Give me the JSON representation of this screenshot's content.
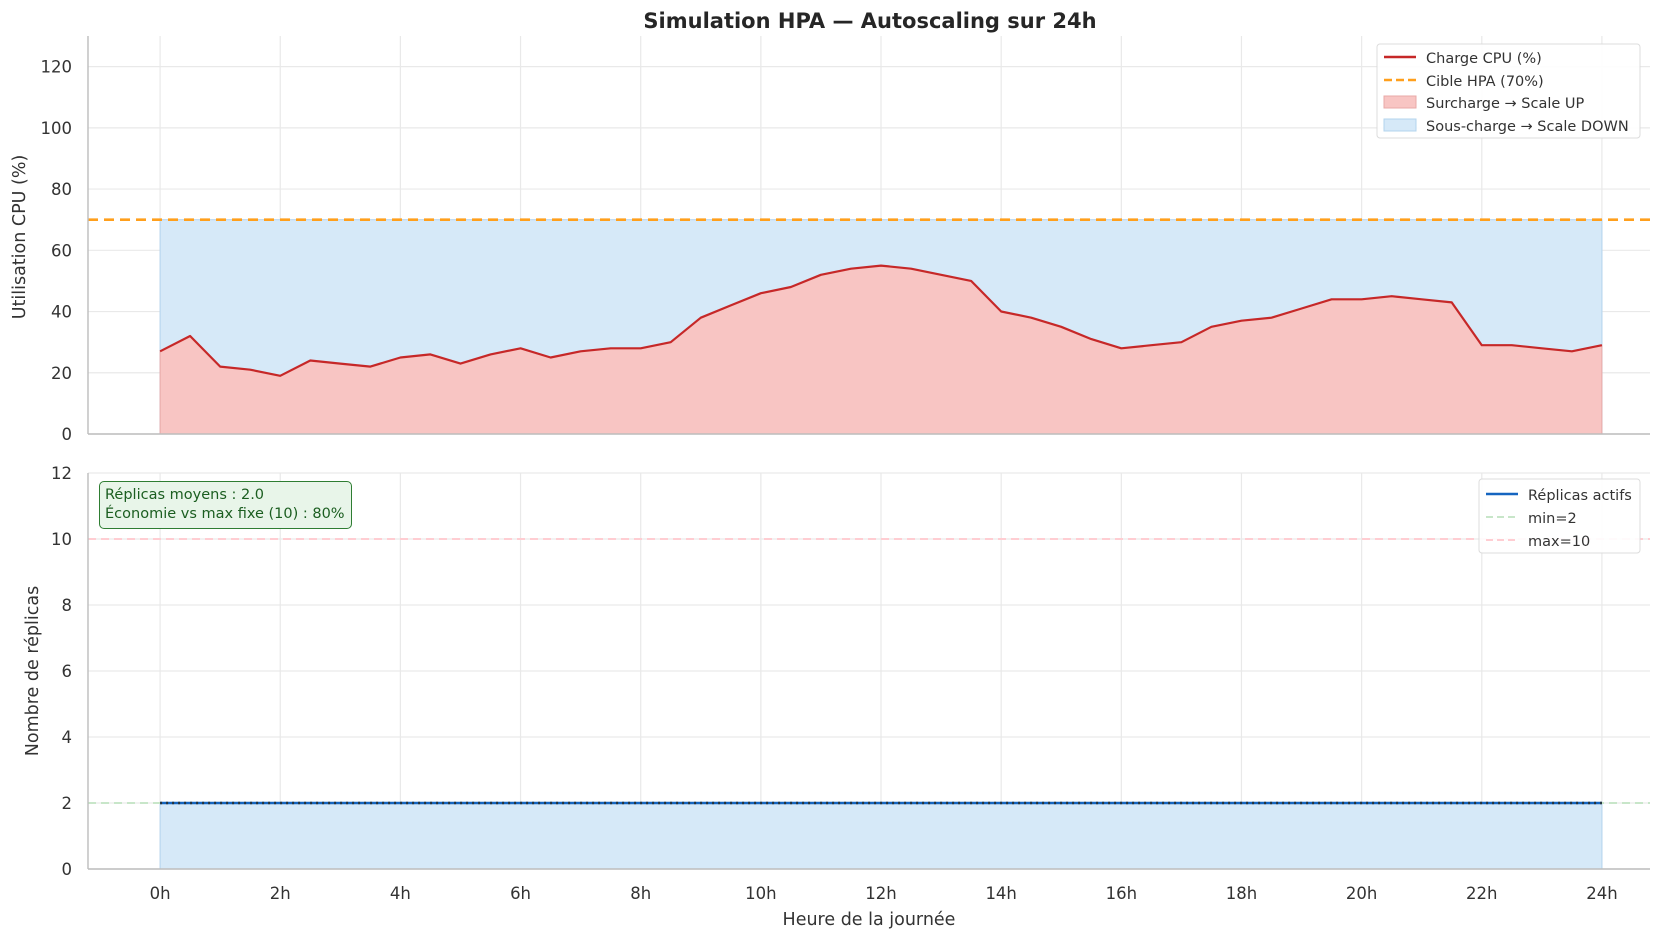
{
  "chart_data": [
    {
      "type": "line",
      "title": "Simulation HPA — Autoscaling sur 24h",
      "xlabel": "",
      "ylabel": "Utilisation CPU (%)",
      "xlim": [
        -1.2,
        24.8
      ],
      "ylim": [
        0,
        130
      ],
      "yticks": [
        0,
        20,
        40,
        60,
        80,
        100,
        120
      ],
      "target": {
        "label": "Cible HPA (70%)",
        "value": 70,
        "color": "#ff9f1c"
      },
      "legend_position": "top-right",
      "legend": [
        {
          "label": "Charge CPU (%)",
          "kind": "line",
          "color": "#c62828"
        },
        {
          "label": "Cible HPA (70%)",
          "kind": "dashed",
          "color": "#ff9f1c"
        },
        {
          "label": "Surcharge → Scale UP",
          "kind": "patch",
          "color": "#f8c5c3"
        },
        {
          "label": "Sous-charge → Scale DOWN",
          "kind": "patch",
          "color": "#d6e9f8"
        }
      ],
      "series": [
        {
          "name": "Charge CPU (%)",
          "color": "#c62828",
          "x": [
            0,
            0.5,
            1,
            1.5,
            2,
            2.5,
            3,
            3.5,
            4,
            4.5,
            5,
            5.5,
            6,
            6.5,
            7,
            7.5,
            8,
            8.5,
            9,
            9.5,
            10,
            10.5,
            11,
            11.5,
            12,
            12.5,
            13,
            13.5,
            14,
            14.5,
            15,
            15.5,
            16,
            16.5,
            17,
            17.5,
            18,
            18.5,
            19,
            19.5,
            20,
            20.5,
            21,
            21.5,
            22,
            22.5,
            23,
            23.5,
            24
          ],
          "values": [
            27,
            32,
            22,
            21,
            19,
            24,
            23,
            22,
            25,
            26,
            23,
            26,
            28,
            25,
            27,
            28,
            28,
            30,
            38,
            42,
            46,
            48,
            52,
            54,
            55,
            54,
            52,
            50,
            40,
            38,
            35,
            31,
            28,
            29,
            30,
            35,
            37,
            38,
            41,
            44,
            44,
            45,
            44,
            43,
            29,
            29,
            28,
            27,
            29
          ]
        }
      ]
    },
    {
      "type": "line",
      "title": "",
      "xlabel": "Heure de la journée",
      "ylabel": "Nombre de réplicas",
      "xlim": [
        -1.2,
        24.8
      ],
      "ylim": [
        0,
        12
      ],
      "yticks": [
        0,
        2,
        4,
        6,
        8,
        10,
        12
      ],
      "xticks": [
        "0h",
        "2h",
        "4h",
        "6h",
        "8h",
        "10h",
        "12h",
        "14h",
        "16h",
        "18h",
        "20h",
        "22h",
        "24h"
      ],
      "legend_position": "top-right",
      "legend": [
        {
          "label": "Réplicas actifs",
          "kind": "line",
          "color": "#1565c0"
        },
        {
          "label": "min=2",
          "kind": "dashed",
          "color": "#c8e6c9"
        },
        {
          "label": "max=10",
          "kind": "dashed",
          "color": "#ffcdd2"
        }
      ],
      "min_replicas": 2,
      "max_replicas": 10,
      "series": [
        {
          "name": "Réplicas actifs",
          "color": "#1565c0",
          "x": [
            0,
            24
          ],
          "values": [
            2,
            2
          ]
        }
      ],
      "annotation": {
        "line1": "Réplicas moyens : 2.0",
        "line2": "Économie vs max fixe (10) : 80%"
      }
    }
  ]
}
